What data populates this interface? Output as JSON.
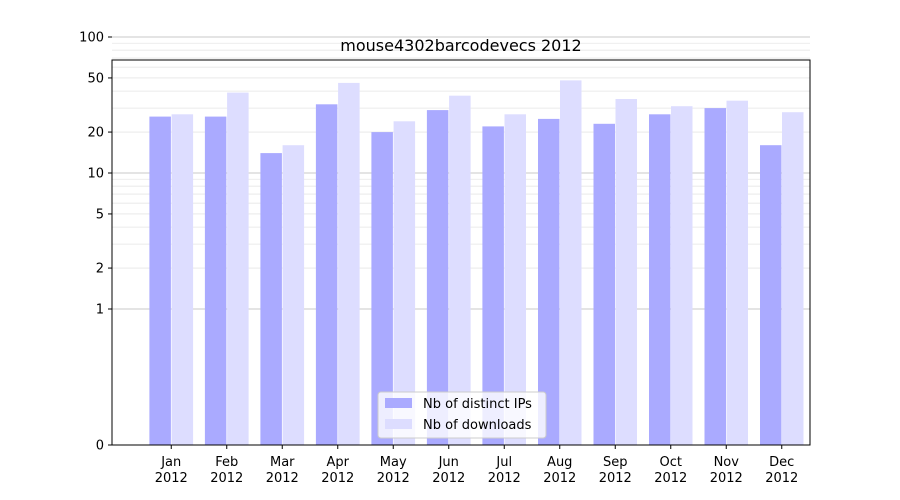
{
  "chart_data": {
    "type": "bar",
    "title": "mouse4302barcodevecs 2012",
    "xlabel": "",
    "ylabel": "",
    "y_scale": "symlog",
    "ylim": [
      0,
      120
    ],
    "y_ticks": [
      0,
      1,
      2,
      5,
      10,
      20,
      50,
      100
    ],
    "y_tick_labels": [
      "0",
      "1",
      "2",
      "5",
      "10",
      "20",
      "50",
      "100"
    ],
    "categories": [
      "Jan\n2012",
      "Feb\n2012",
      "Mar\n2012",
      "Apr\n2012",
      "May\n2012",
      "Jun\n2012",
      "Jul\n2012",
      "Aug\n2012",
      "Sep\n2012",
      "Oct\n2012",
      "Nov\n2012",
      "Dec\n2012"
    ],
    "series": [
      {
        "name": "Nb of distinct IPs",
        "color": "#aaaaff",
        "values": [
          26,
          26,
          14,
          32,
          20,
          29,
          22,
          25,
          23,
          27,
          30,
          16
        ]
      },
      {
        "name": "Nb of downloads",
        "color": "#ddddff",
        "values": [
          27,
          39,
          16,
          46,
          24,
          37,
          27,
          48,
          35,
          31,
          34,
          28
        ]
      }
    ],
    "grid": true,
    "legend_position": "lower-center"
  }
}
